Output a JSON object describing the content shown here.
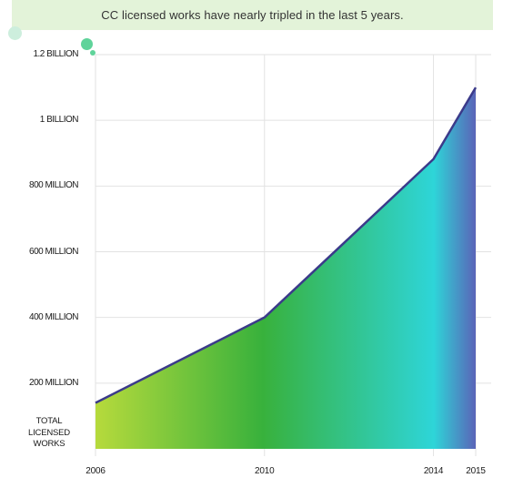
{
  "banner": {
    "title": "CC licensed works have nearly tripled in the last 5 years."
  },
  "chart_data": {
    "type": "area",
    "title": "CC licensed works have nearly tripled in the last 5 years.",
    "ylabel": "TOTAL LICENSED WORKS",
    "xlabel": "",
    "x": [
      2006,
      2010,
      2014,
      2015
    ],
    "series": [
      {
        "values": [
          140000000,
          400000000,
          882000000,
          1100000000
        ]
      }
    ],
    "ylim": [
      0,
      1200000000
    ],
    "xlim": [
      2006,
      2015
    ],
    "xticks": [
      "2006",
      "2010",
      "2014",
      "2015"
    ],
    "yticks": [
      {
        "value": 200000000,
        "label": "200 MILLION"
      },
      {
        "value": 400000000,
        "label": "400 MILLION"
      },
      {
        "value": 600000000,
        "label": "600 MILLION"
      },
      {
        "value": 800000000,
        "label": "800 MILLION"
      },
      {
        "value": 1000000000,
        "label": "1 BILLION"
      },
      {
        "value": 1200000000,
        "label": "1.2 BILLION"
      }
    ],
    "grid": true,
    "legend": "none",
    "colors": {
      "gradient": [
        "#b6da3c",
        "#38b13c",
        "#2ed5d8",
        "#5a64b8"
      ],
      "line": "#3b3a8a",
      "grid": "#e2e2e2",
      "banner_bg": "#e3f3d9",
      "bubble": "#5fd39a"
    }
  }
}
